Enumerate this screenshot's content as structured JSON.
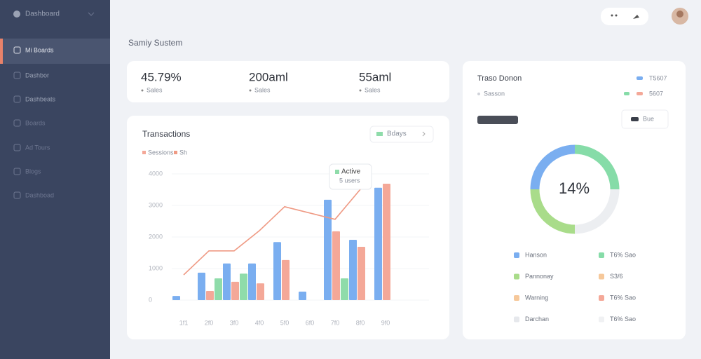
{
  "sidebar": {
    "brand": "Dashboard",
    "items": [
      "Mi Boards",
      "Dashbor",
      "Dashbeats",
      "Boards",
      "Ad Tours",
      "Blogs",
      "Dashboad"
    ]
  },
  "page_title": "Samiy Sustem",
  "stats": [
    {
      "value": "45.79%",
      "label": "Sales"
    },
    {
      "value": "200aml",
      "label": "Sales"
    },
    {
      "value": "55aml",
      "label": "Sales"
    }
  ],
  "transactions_chart": {
    "type": "bar",
    "title": "Transactions",
    "filter": "Bdays",
    "tooltip": {
      "title": "Active",
      "sub": "5 users"
    },
    "categories": [
      "1f1",
      "2f0",
      "3f0",
      "4f0",
      "5f0",
      "6f0",
      "7f0",
      "8f0",
      "9f0"
    ],
    "ylim": [
      0,
      4000
    ],
    "yticks": [
      0,
      1000,
      2000,
      3000,
      4000
    ],
    "grid": true,
    "series": [
      {
        "color": "#7aaef0",
        "values": [
          130,
          870,
          1160,
          1160,
          1840,
          270,
          3180,
          1910,
          3560
        ]
      },
      {
        "name": "Sessions",
        "color": "#f4a898",
        "values": [
          null,
          290,
          580,
          530,
          1270,
          null,
          2180,
          1690,
          3690
        ]
      },
      {
        "color": "#8fdcaa",
        "values": [
          null,
          690,
          840,
          null,
          null,
          null,
          690,
          null,
          null
        ]
      },
      {
        "name": "Sh",
        "type": "line",
        "color": "#ef9a84",
        "values": [
          800,
          1560,
          1560,
          2200,
          2960,
          2760,
          2560,
          3510,
          null
        ]
      }
    ]
  },
  "traffic": {
    "type": "donut",
    "title": "Traso Donon",
    "top_right": "T5607",
    "subtitle": "Sasson",
    "sub_right": "5607",
    "button": "Bue",
    "center": "14%",
    "values": [
      25,
      25,
      25,
      25
    ],
    "colors": [
      "#7aaef0",
      "#86dca8",
      "#eceef1",
      "#a9dc8a"
    ],
    "legend": [
      {
        "label": "Hanson",
        "color": "#7aaef0"
      },
      {
        "label": "T6% Sao",
        "color": "#86dca8"
      },
      {
        "label": "Pannonay",
        "color": "#a9dc8a"
      },
      {
        "label": "S3/6",
        "color": "#f6c89a"
      },
      {
        "label": "Warning",
        "color": "#f6c89a"
      },
      {
        "label": "T6% Sao",
        "color": "#f4a898"
      },
      {
        "label": "Darchan",
        "color": "#e6e8ec"
      },
      {
        "label": "T6% Sao",
        "color": "#f0f1f3"
      }
    ]
  }
}
